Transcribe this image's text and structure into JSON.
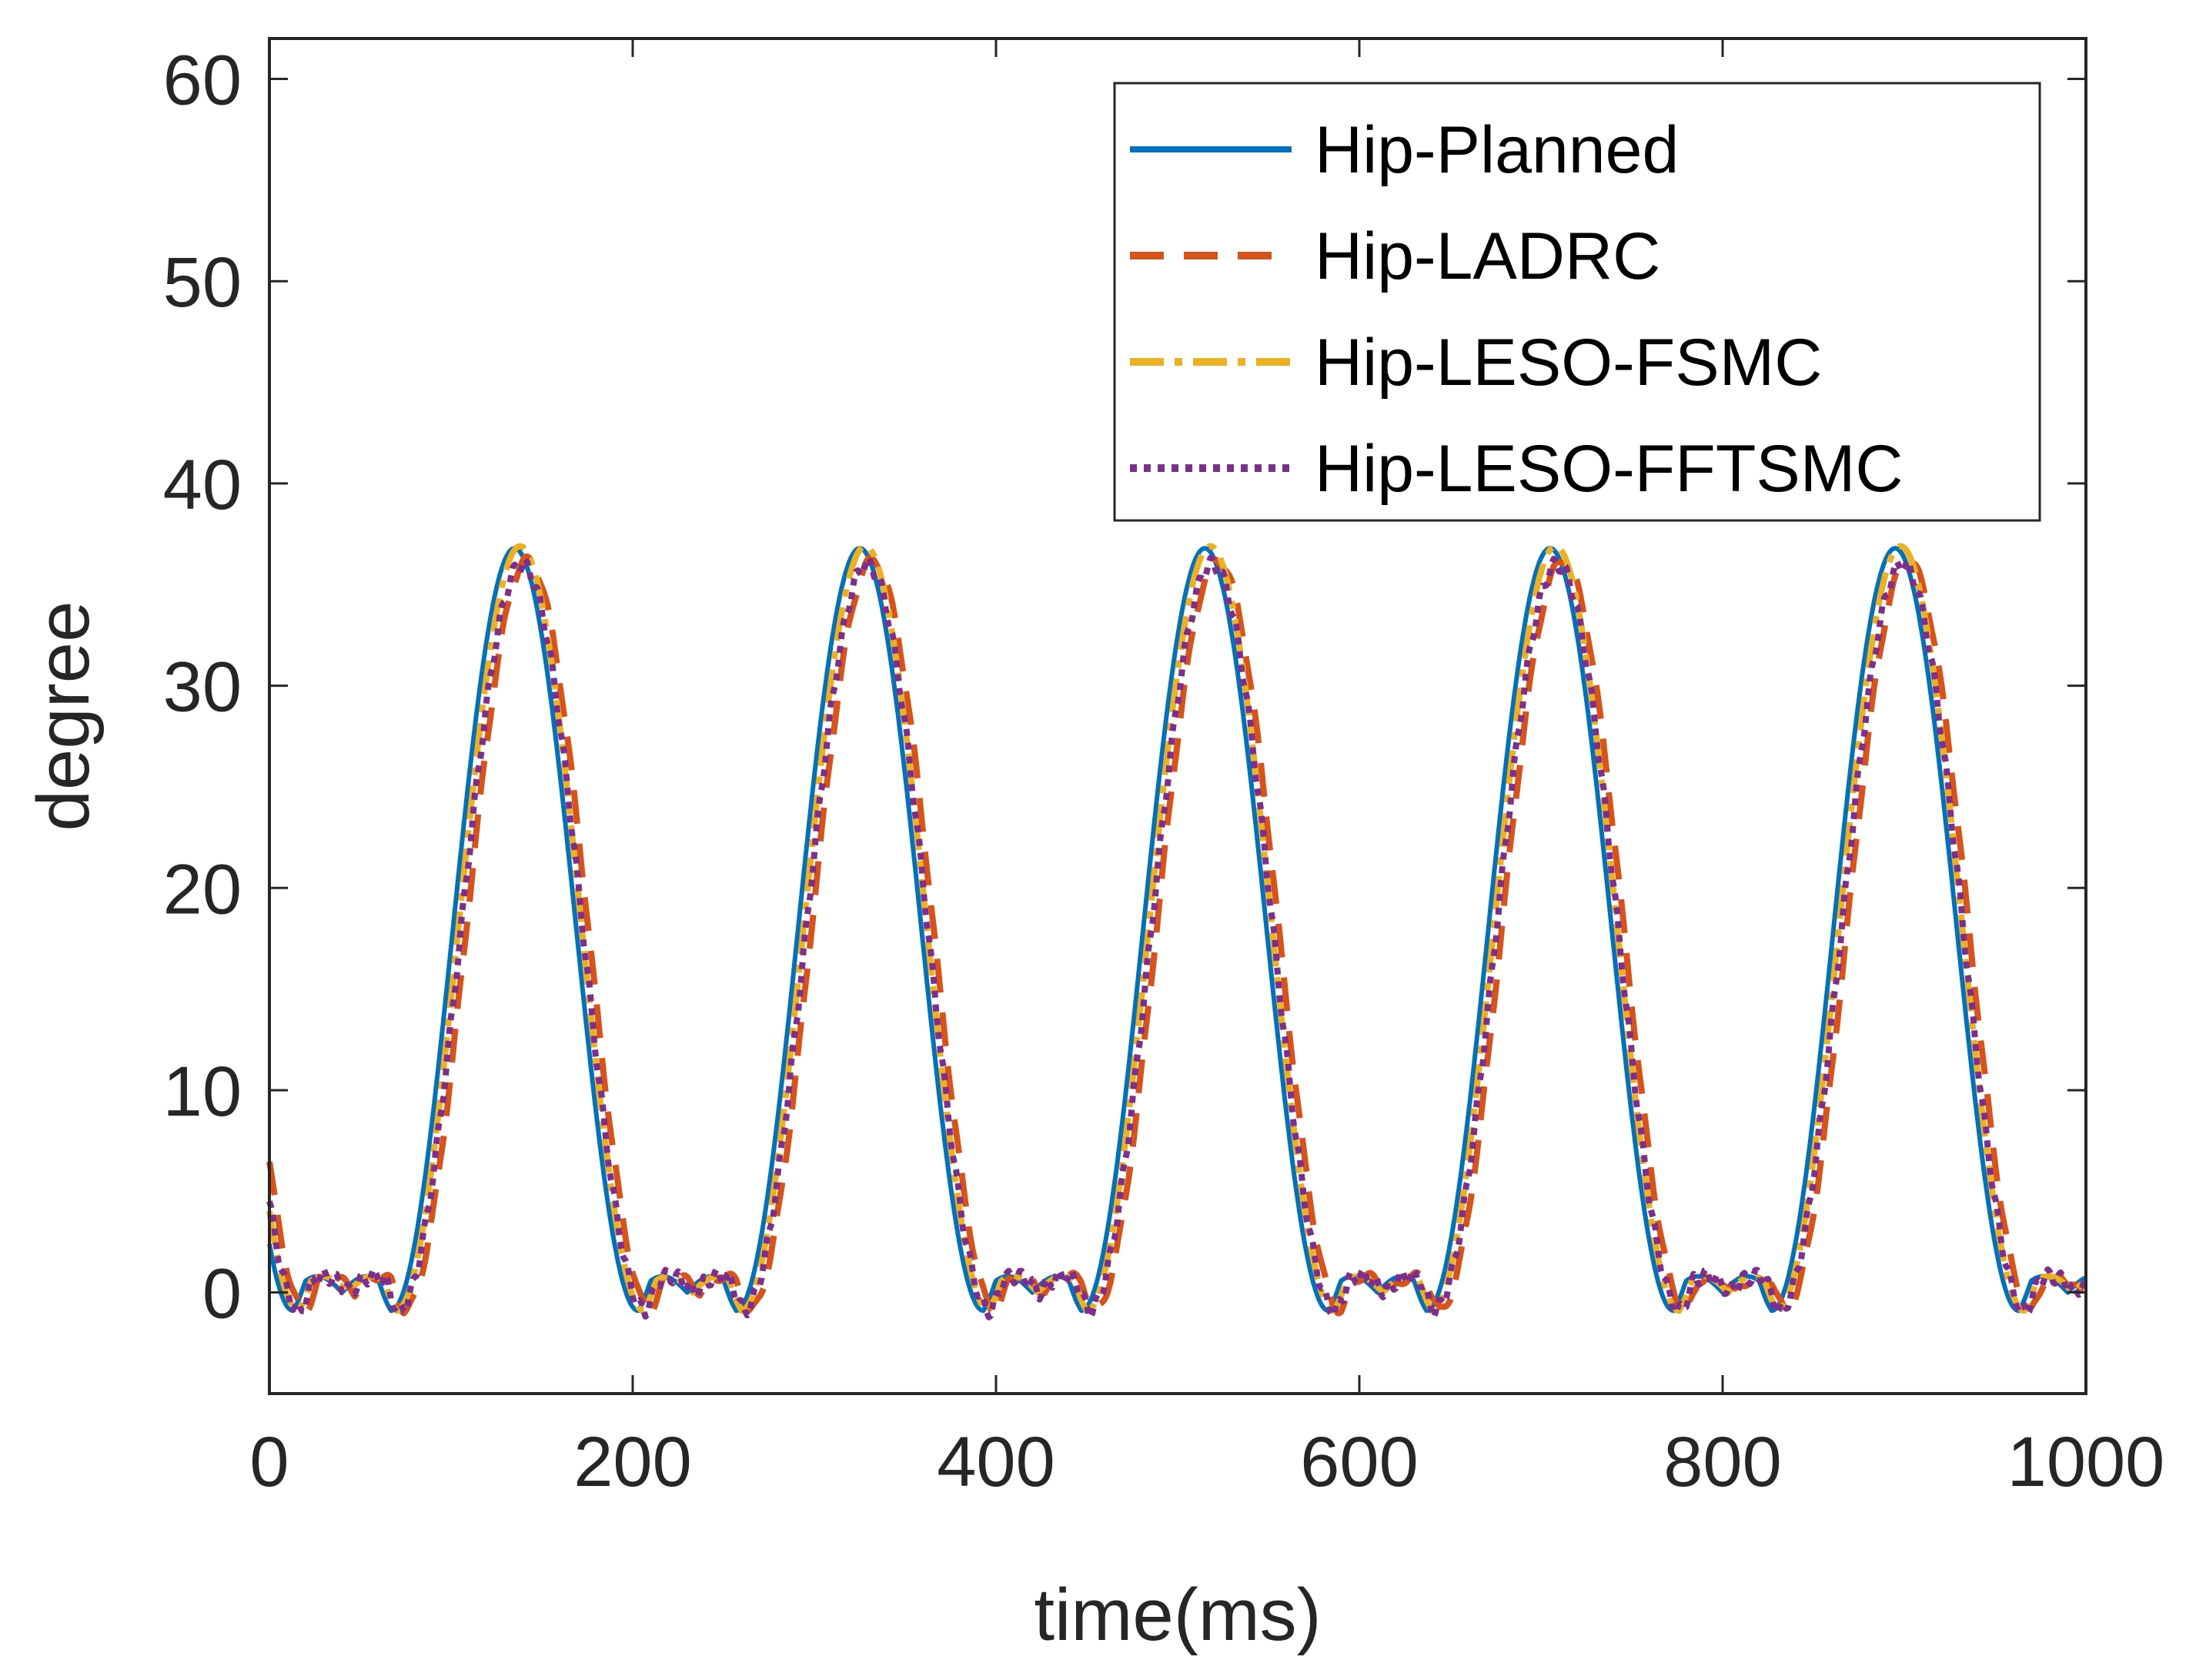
{
  "chart_data": {
    "type": "line",
    "title": "",
    "xlabel": "time(ms)",
    "ylabel": "degree",
    "xlim": [
      0,
      1000
    ],
    "ylim": [
      -5,
      62
    ],
    "xticks": [
      0,
      200,
      400,
      600,
      800,
      1000
    ],
    "yticks": [
      0,
      10,
      20,
      30,
      40,
      50,
      60
    ],
    "grid": false,
    "legend_position": "top-right",
    "period_ms": 190,
    "peak_times_ms": [
      135,
      325,
      515,
      705,
      895
    ],
    "peak_value": 36.8,
    "series": [
      {
        "name": "Hip-Planned",
        "color": "#0072BD",
        "style": "solid",
        "shift_ms": 0,
        "peak": 36.8
      },
      {
        "name": "Hip-LADRC",
        "color": "#D95319",
        "style": "dashed",
        "shift_ms": 7,
        "peak": 36.2
      },
      {
        "name": "Hip-LESO-FSMC",
        "color": "#EDB120",
        "style": "dashdot",
        "shift_ms": 3,
        "peak": 36.9
      },
      {
        "name": "Hip-LESO-FFTSMC",
        "color": "#7E2F8E",
        "style": "dotted",
        "shift_ms": 4,
        "peak": 36.0
      }
    ]
  }
}
